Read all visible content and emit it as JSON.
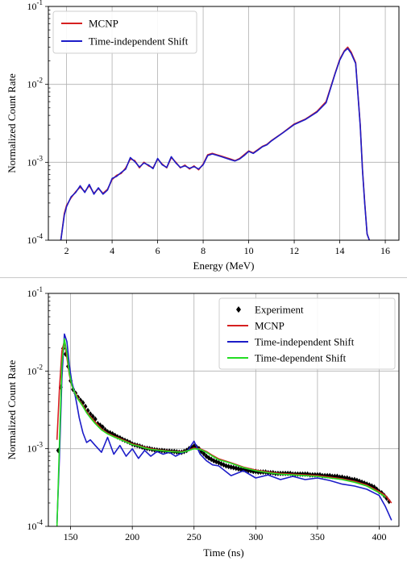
{
  "chart_data": [
    {
      "type": "line",
      "xlabel": "Energy (MeV)",
      "ylabel": "Normalized Count Rate",
      "xlim": [
        1.2,
        16.6
      ],
      "ylim": [
        0.0001,
        0.1
      ],
      "yscale": "log",
      "grid": true,
      "legend_position": "top-left",
      "x_ticks": [
        "2",
        "4",
        "6",
        "8",
        "10",
        "12",
        "14",
        "16"
      ],
      "x_tick_values": [
        2,
        4,
        6,
        8,
        10,
        12,
        14,
        16
      ],
      "y_ticks": [
        {
          "value": 0.0001,
          "base": "10",
          "exp": "-4"
        },
        {
          "value": 0.001,
          "base": "10",
          "exp": "-3"
        },
        {
          "value": 0.01,
          "base": "10",
          "exp": "-2"
        },
        {
          "value": 0.1,
          "base": "10",
          "exp": "-1"
        }
      ],
      "series": [
        {
          "name": "MCNP",
          "color": "#d62020",
          "x": [
            1.75,
            1.9,
            2.0,
            2.2,
            2.4,
            2.6,
            2.8,
            3.0,
            3.2,
            3.4,
            3.6,
            3.8,
            4.0,
            4.2,
            4.4,
            4.6,
            4.8,
            5.0,
            5.2,
            5.4,
            5.6,
            5.8,
            6.0,
            6.2,
            6.4,
            6.6,
            6.8,
            7.0,
            7.2,
            7.4,
            7.6,
            7.8,
            8.0,
            8.2,
            8.4,
            8.6,
            8.8,
            9.0,
            9.2,
            9.4,
            9.6,
            9.8,
            10.0,
            10.2,
            10.4,
            10.6,
            10.8,
            11.0,
            11.5,
            12.0,
            12.5,
            13.0,
            13.4,
            13.8,
            14.0,
            14.2,
            14.35,
            14.5,
            14.7,
            14.9,
            15.0,
            15.1,
            15.2,
            15.3
          ],
          "y": [
            0.0001,
            0.00022,
            0.00028,
            0.00035,
            0.00042,
            0.00048,
            0.00042,
            0.0005,
            0.0004,
            0.00046,
            0.0004,
            0.00045,
            0.0006,
            0.00068,
            0.00072,
            0.00085,
            0.0011,
            0.00105,
            0.00085,
            0.001,
            0.0009,
            0.00085,
            0.0011,
            0.00095,
            0.00085,
            0.00115,
            0.001,
            0.00085,
            0.00092,
            0.00082,
            0.0009,
            0.0008,
            0.00095,
            0.00125,
            0.0013,
            0.00125,
            0.0012,
            0.00115,
            0.0011,
            0.00105,
            0.00112,
            0.00125,
            0.0014,
            0.00132,
            0.00145,
            0.0016,
            0.0017,
            0.0019,
            0.0024,
            0.0031,
            0.0036,
            0.0045,
            0.006,
            0.014,
            0.021,
            0.027,
            0.03,
            0.026,
            0.019,
            0.003,
            0.0008,
            0.0003,
            0.00012,
            0.0001
          ]
        },
        {
          "name": "Time-independent Shift",
          "color": "#1c1cc8",
          "x": [
            1.75,
            1.9,
            2.0,
            2.2,
            2.4,
            2.6,
            2.8,
            3.0,
            3.2,
            3.4,
            3.6,
            3.8,
            4.0,
            4.2,
            4.4,
            4.6,
            4.8,
            5.0,
            5.2,
            5.4,
            5.6,
            5.8,
            6.0,
            6.2,
            6.4,
            6.6,
            6.8,
            7.0,
            7.2,
            7.4,
            7.6,
            7.8,
            8.0,
            8.2,
            8.4,
            8.6,
            8.8,
            9.0,
            9.2,
            9.4,
            9.6,
            9.8,
            10.0,
            10.2,
            10.4,
            10.6,
            10.8,
            11.0,
            11.5,
            12.0,
            12.5,
            13.0,
            13.4,
            13.8,
            14.0,
            14.2,
            14.35,
            14.5,
            14.7,
            14.9,
            15.0,
            15.1,
            15.2,
            15.3
          ],
          "y": [
            0.0001,
            0.00021,
            0.00027,
            0.00036,
            0.00041,
            0.0005,
            0.00041,
            0.00052,
            0.00039,
            0.00047,
            0.00039,
            0.00044,
            0.00062,
            0.00066,
            0.00074,
            0.00082,
            0.00115,
            0.00102,
            0.00087,
            0.00098,
            0.00092,
            0.00083,
            0.00112,
            0.00093,
            0.00086,
            0.00118,
            0.00098,
            0.00086,
            0.0009,
            0.00084,
            0.00088,
            0.00082,
            0.00093,
            0.00122,
            0.00128,
            0.00123,
            0.00118,
            0.00113,
            0.00108,
            0.00104,
            0.0011,
            0.00122,
            0.00138,
            0.0013,
            0.00143,
            0.00158,
            0.00168,
            0.00188,
            0.00238,
            0.00305,
            0.00355,
            0.0044,
            0.0058,
            0.0138,
            0.0205,
            0.0265,
            0.029,
            0.025,
            0.0185,
            0.0029,
            0.00078,
            0.00029,
            0.00012,
            0.0001
          ]
        }
      ]
    },
    {
      "type": "line",
      "xlabel": "Time (ns)",
      "ylabel": "Normalized Count Rate",
      "xlim": [
        132,
        416
      ],
      "ylim": [
        0.0001,
        0.1
      ],
      "yscale": "log",
      "grid": true,
      "legend_position": "top-right",
      "x_ticks": [
        "150",
        "200",
        "250",
        "300",
        "350",
        "400"
      ],
      "x_tick_values": [
        150,
        200,
        250,
        300,
        350,
        400
      ],
      "y_ticks": [
        {
          "value": 0.0001,
          "base": "10",
          "exp": "-4"
        },
        {
          "value": 0.001,
          "base": "10",
          "exp": "-3"
        },
        {
          "value": 0.01,
          "base": "10",
          "exp": "-2"
        },
        {
          "value": 0.1,
          "base": "10",
          "exp": "-1"
        }
      ],
      "series": [
        {
          "name": "Experiment",
          "color": "#000000",
          "marker": "diamond",
          "x": [
            140,
            142,
            144,
            146,
            148,
            150,
            152,
            154,
            156,
            158,
            160,
            162,
            164,
            166,
            168,
            170,
            172,
            174,
            176,
            178,
            180,
            182,
            184,
            186,
            188,
            190,
            192,
            194,
            196,
            198,
            200,
            202,
            204,
            206,
            208,
            210,
            212,
            214,
            216,
            218,
            220,
            222,
            224,
            226,
            228,
            230,
            232,
            234,
            236,
            238,
            240,
            242,
            244,
            246,
            248,
            250,
            252,
            254,
            256,
            258,
            260,
            262,
            264,
            266,
            268,
            270,
            272,
            274,
            276,
            278,
            280,
            282,
            284,
            286,
            288,
            290,
            292,
            294,
            296,
            298,
            300,
            302,
            304,
            306,
            308,
            310,
            312,
            314,
            316,
            318,
            320,
            322,
            324,
            326,
            328,
            330,
            332,
            334,
            336,
            338,
            340,
            342,
            344,
            346,
            348,
            350,
            352,
            354,
            356,
            358,
            360,
            362,
            364,
            366,
            368,
            370,
            372,
            374,
            376,
            378,
            380,
            382,
            384,
            386,
            388,
            390,
            392,
            394,
            396,
            398,
            400,
            402,
            404,
            406,
            408
          ],
          "y": [
            0.00095,
            0.0062,
            0.0195,
            0.0165,
            0.0115,
            0.0075,
            0.0058,
            0.0052,
            0.0046,
            0.0042,
            0.0039,
            0.0035,
            0.0031,
            0.0028,
            0.0026,
            0.0024,
            0.0021,
            0.002,
            0.0019,
            0.00175,
            0.00165,
            0.0016,
            0.00155,
            0.00148,
            0.00142,
            0.00138,
            0.00132,
            0.00128,
            0.00124,
            0.0012,
            0.00115,
            0.00112,
            0.0011,
            0.00108,
            0.00105,
            0.00102,
            0.00101,
            0.001,
            0.00098,
            0.00097,
            0.00096,
            0.00095,
            0.00095,
            0.00094,
            0.00093,
            0.00093,
            0.00092,
            0.00092,
            0.00091,
            0.0009,
            0.0009,
            0.00092,
            0.00095,
            0.001,
            0.00105,
            0.00108,
            0.00105,
            0.001,
            0.00092,
            0.00086,
            0.0008,
            0.00076,
            0.00073,
            0.0007,
            0.00068,
            0.00066,
            0.00064,
            0.00062,
            0.0006,
            0.00059,
            0.00058,
            0.00057,
            0.00056,
            0.00055,
            0.00054,
            0.00054,
            0.00053,
            0.00052,
            0.00052,
            0.00051,
            0.00051,
            0.0005,
            0.0005,
            0.0005,
            0.0005,
            0.00049,
            0.00049,
            0.00049,
            0.00048,
            0.00048,
            0.00048,
            0.00048,
            0.00048,
            0.00048,
            0.00048,
            0.00047,
            0.00047,
            0.00047,
            0.00047,
            0.00047,
            0.00047,
            0.00047,
            0.00046,
            0.00046,
            0.00046,
            0.00046,
            0.00046,
            0.00045,
            0.00045,
            0.00045,
            0.00045,
            0.00044,
            0.00044,
            0.00044,
            0.00043,
            0.00043,
            0.00042,
            0.00042,
            0.00041,
            0.0004,
            0.0004,
            0.00039,
            0.00038,
            0.00037,
            0.00036,
            0.00035,
            0.00034,
            0.00033,
            0.00032,
            0.0003,
            0.00028,
            0.00027,
            0.00025,
            0.00023,
            0.00021
          ]
        },
        {
          "name": "MCNP",
          "color": "#d62020",
          "x": [
            139,
            141,
            143,
            145,
            147,
            149,
            151,
            153,
            155,
            157,
            160,
            163,
            166,
            170,
            175,
            180,
            185,
            190,
            195,
            200,
            205,
            210,
            215,
            220,
            225,
            230,
            235,
            240,
            245,
            250,
            255,
            260,
            265,
            270,
            280,
            290,
            300,
            310,
            320,
            330,
            340,
            350,
            360,
            370,
            380,
            390,
            400,
            405,
            410
          ],
          "y": [
            0.0013,
            0.006,
            0.018,
            0.0245,
            0.015,
            0.009,
            0.0065,
            0.0055,
            0.0048,
            0.0042,
            0.0036,
            0.003,
            0.0026,
            0.0022,
            0.0018,
            0.00158,
            0.00145,
            0.00135,
            0.00125,
            0.00115,
            0.0011,
            0.00104,
            0.001,
            0.00097,
            0.00095,
            0.00093,
            0.00092,
            0.00091,
            0.00095,
            0.00102,
            0.001,
            0.00092,
            0.00082,
            0.00074,
            0.00066,
            0.00058,
            0.00053,
            0.0005,
            0.00048,
            0.00047,
            0.00046,
            0.00045,
            0.00043,
            0.00041,
            0.00038,
            0.00034,
            0.00028,
            0.00025,
            0.0002
          ]
        },
        {
          "name": "Time-independent Shift",
          "color": "#1c1cc8",
          "x": [
            139,
            141,
            143,
            145,
            147,
            149,
            151,
            153,
            155,
            157,
            160,
            163,
            166,
            170,
            175,
            180,
            185,
            190,
            195,
            200,
            205,
            210,
            215,
            220,
            225,
            230,
            235,
            240,
            245,
            250,
            255,
            260,
            265,
            270,
            280,
            290,
            300,
            310,
            320,
            330,
            340,
            350,
            360,
            370,
            380,
            390,
            400,
            405,
            410
          ],
          "y": [
            0.00011,
            0.0008,
            0.008,
            0.03,
            0.024,
            0.012,
            0.0072,
            0.0055,
            0.0038,
            0.0025,
            0.0016,
            0.0012,
            0.0013,
            0.0011,
            0.0009,
            0.0014,
            0.00085,
            0.0011,
            0.0008,
            0.001,
            0.00075,
            0.00095,
            0.0008,
            0.00092,
            0.00085,
            0.0009,
            0.0008,
            0.00088,
            0.00095,
            0.00125,
            0.00085,
            0.0007,
            0.00062,
            0.0006,
            0.00045,
            0.00052,
            0.00042,
            0.00046,
            0.0004,
            0.00044,
            0.0004,
            0.00042,
            0.00039,
            0.00035,
            0.00033,
            0.0003,
            0.00025,
            0.00018,
            0.00012
          ]
        },
        {
          "name": "Time-dependent Shift",
          "color": "#22dd22",
          "x": [
            139,
            141,
            143,
            145,
            147,
            149,
            151,
            153,
            155,
            157,
            160,
            163,
            166,
            170,
            175,
            180,
            185,
            190,
            195,
            200,
            205,
            210,
            215,
            220,
            225,
            230,
            235,
            240,
            245,
            250,
            255,
            260,
            265,
            270,
            280,
            290,
            300,
            310,
            320,
            330,
            340,
            350,
            360,
            370,
            380,
            390,
            400,
            405
          ],
          "y": [
            0.0001,
            0.0012,
            0.012,
            0.026,
            0.017,
            0.0095,
            0.0066,
            0.0054,
            0.0046,
            0.0041,
            0.0035,
            0.0029,
            0.0025,
            0.0021,
            0.00175,
            0.00155,
            0.00142,
            0.00132,
            0.00122,
            0.00113,
            0.00108,
            0.00102,
            0.00098,
            0.00096,
            0.00094,
            0.00092,
            0.00091,
            0.0009,
            0.00094,
            0.001,
            0.00098,
            0.0009,
            0.0008,
            0.00072,
            0.00065,
            0.00057,
            0.00052,
            0.00049,
            0.00047,
            0.00046,
            0.00045,
            0.00044,
            0.00042,
            0.0004,
            0.00037,
            0.00033,
            0.00027,
            0.00024
          ]
        }
      ]
    }
  ]
}
